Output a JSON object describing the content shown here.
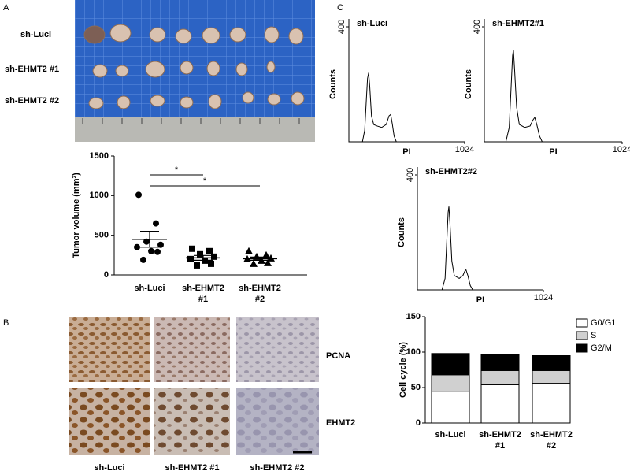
{
  "panel_labels": [
    "A",
    "B",
    "C"
  ],
  "photo_labels": [
    "sh-Luci",
    "sh-EHMT2 #1",
    "sh-EHMT2 #2"
  ],
  "ihc": {
    "rows": [
      "PCNA",
      "EHMT2"
    ],
    "columns": [
      "sh-Luci",
      "sh-EHMT2 #1",
      "sh-EHMT2 #2"
    ]
  },
  "chart_data": [
    {
      "type": "dot",
      "ylabel": "Tumor volume (mm³)",
      "categories": [
        "sh-Luci",
        "sh-EHMT2 #1",
        "sh-EHMT2 #2"
      ],
      "groups": [
        {
          "marker": "circle",
          "values": [
            1010,
            650,
            420,
            380,
            350,
            300,
            290,
            190
          ],
          "mean": 450,
          "sem": 100
        },
        {
          "marker": "square",
          "values": [
            330,
            300,
            260,
            230,
            200,
            180,
            140,
            120
          ],
          "mean": 215,
          "sem": 30
        },
        {
          "marker": "triangle",
          "values": [
            300,
            250,
            230,
            210,
            200,
            180,
            150,
            140
          ],
          "mean": 205,
          "sem": 20
        }
      ],
      "color": "#000000",
      "ylim": [
        0,
        1500
      ],
      "yticks": [
        0,
        500,
        1000,
        1500
      ],
      "annotations": [
        {
          "text": "*",
          "from": 0,
          "to": 1
        },
        {
          "text": "*",
          "from": 0,
          "to": 2
        }
      ]
    },
    {
      "type": "line",
      "title": "sh-Luci",
      "xlabel": "PI",
      "ylabel": "Counts",
      "color": "#000000",
      "x": [
        0,
        120,
        140,
        155,
        165,
        175,
        185,
        200,
        220,
        250,
        290,
        330,
        355,
        370,
        385,
        400,
        420,
        1024
      ],
      "values": [
        0,
        0,
        40,
        150,
        220,
        240,
        190,
        90,
        60,
        55,
        50,
        60,
        90,
        95,
        60,
        20,
        0,
        0
      ],
      "xlim": [
        0,
        1024
      ],
      "xticks": [
        1024
      ],
      "ylim": [
        0,
        400
      ],
      "yticks": [
        400
      ]
    },
    {
      "type": "line",
      "title": "sh-EHMT2#1",
      "xlabel": "PI",
      "ylabel": "Counts",
      "color": "#000000",
      "x": [
        0,
        160,
        185,
        200,
        210,
        216,
        225,
        240,
        260,
        300,
        340,
        360,
        375,
        390,
        410,
        430,
        1024
      ],
      "values": [
        0,
        0,
        50,
        200,
        300,
        320,
        250,
        120,
        60,
        50,
        55,
        75,
        85,
        60,
        20,
        0,
        0
      ],
      "xlim": [
        0,
        1024
      ],
      "xticks": [
        1024
      ],
      "ylim": [
        0,
        400
      ],
      "yticks": [
        400
      ]
    },
    {
      "type": "line",
      "title": "sh-EHMT2#2",
      "xlabel": "PI",
      "ylabel": "Counts",
      "color": "#000000",
      "x": [
        0,
        200,
        225,
        240,
        250,
        256,
        265,
        280,
        300,
        340,
        370,
        385,
        395,
        410,
        430,
        450,
        1024
      ],
      "values": [
        0,
        0,
        40,
        180,
        270,
        290,
        230,
        100,
        50,
        40,
        50,
        65,
        70,
        50,
        15,
        0,
        0
      ],
      "xlim": [
        0,
        1024
      ],
      "xticks": [
        1024
      ],
      "ylim": [
        0,
        400
      ],
      "yticks": [
        400
      ]
    },
    {
      "type": "bar",
      "stacked": true,
      "ylabel": "Cell cycle (%)",
      "categories": [
        "sh-Luci",
        "sh-EHMT2 #1",
        "sh-EHMT2 #2"
      ],
      "series": [
        {
          "name": "G0/G1",
          "color": "#ffffff",
          "values": [
            44,
            54,
            56
          ]
        },
        {
          "name": "S",
          "color": "#d0d0d0",
          "values": [
            24,
            20,
            18
          ]
        },
        {
          "name": "G2/M",
          "color": "#000000",
          "values": [
            30,
            23,
            21
          ]
        }
      ],
      "ylim": [
        0,
        150
      ],
      "yticks": [
        0,
        50,
        100,
        150
      ],
      "legend": "top-right"
    }
  ]
}
